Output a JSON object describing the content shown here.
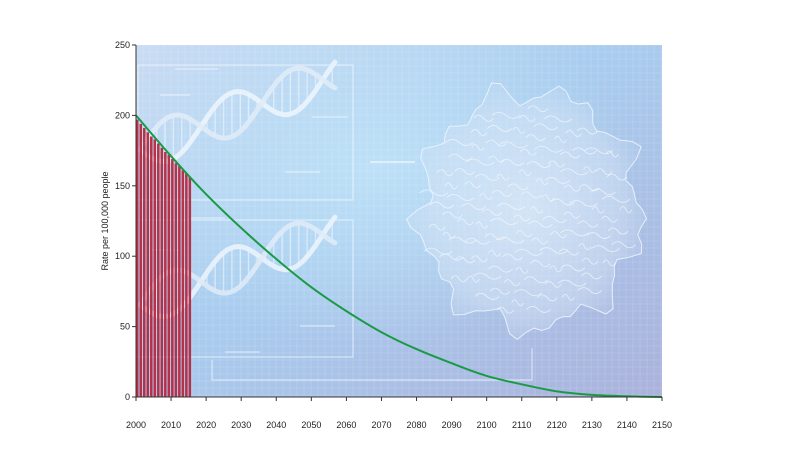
{
  "chart_data": {
    "type": "bar",
    "title": "",
    "xlabel": "",
    "ylabel": "Rate per 100,000 people",
    "xlim": [
      2000,
      2150
    ],
    "ylim": [
      0,
      250
    ],
    "x_ticks": [
      2000,
      2010,
      2020,
      2030,
      2040,
      2050,
      2060,
      2070,
      2080,
      2090,
      2100,
      2110,
      2120,
      2130,
      2140,
      2150
    ],
    "y_ticks": [
      0,
      50,
      100,
      150,
      200,
      250
    ],
    "grid": true,
    "legend": "none",
    "background": "illustration of DNA double helices and a cell over a light blue grid",
    "bars": {
      "name": "",
      "color": "#b5243b",
      "x": [
        2000,
        2001,
        2002,
        2003,
        2004,
        2005,
        2006,
        2007,
        2008,
        2009,
        2010,
        2011,
        2012,
        2013,
        2014,
        2015
      ],
      "values": [
        197,
        194,
        191,
        188,
        185,
        183,
        180,
        177,
        174,
        172,
        169,
        166,
        164,
        161,
        159,
        156
      ]
    },
    "trend_line": {
      "name": "",
      "color": "#1a9a45",
      "x": [
        2000,
        2010,
        2020,
        2030,
        2040,
        2050,
        2060,
        2070,
        2080,
        2090,
        2100,
        2110,
        2120,
        2130,
        2140,
        2150
      ],
      "values": [
        200,
        171,
        144,
        120,
        98,
        78,
        61,
        46,
        34,
        24,
        15,
        9,
        4,
        1.5,
        0.5,
        0
      ]
    }
  }
}
